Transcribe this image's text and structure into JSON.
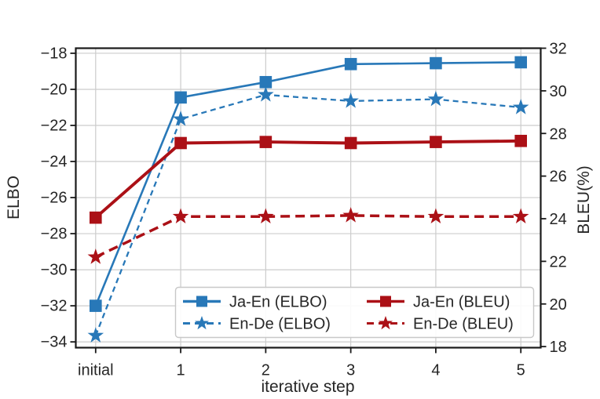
{
  "figure": {
    "background": "#ffffff"
  },
  "colors": {
    "blue": "#2878b8",
    "red": "#ab1016",
    "grid": "#cccccc",
    "spine": "#1a1a1a",
    "text": "#262626",
    "legend_border": "#c8c8c8",
    "legend_bg": "#ffffff"
  },
  "chart_data": {
    "type": "line",
    "categories": [
      "initial",
      "1",
      "2",
      "3",
      "4",
      "5"
    ],
    "x_axis_label": "iterative step",
    "left_axis": {
      "label": "ELBO",
      "ticks": [
        -18,
        -20,
        -22,
        -24,
        -26,
        -28,
        -30,
        -32,
        -34
      ],
      "tick_labels": [
        "−18",
        "−20",
        "−22",
        "−24",
        "−26",
        "−28",
        "−30",
        "−32",
        "−34"
      ],
      "lim": [
        -34.32,
        -17.72
      ]
    },
    "right_axis": {
      "label": "BLEU(%)",
      "ticks": [
        32,
        30,
        28,
        26,
        24,
        22,
        20,
        18
      ],
      "tick_labels": [
        "32",
        "30",
        "28",
        "26",
        "24",
        "22",
        "20",
        "18"
      ],
      "lim": [
        17.95,
        32.0
      ]
    },
    "grid": true,
    "legend_position": "lower center-right, 2 columns",
    "series": [
      {
        "name": "Ja-En (ELBO)",
        "axis": "left",
        "color": "#2878b8",
        "style": "solid",
        "marker": "square",
        "values": [
          -32.0,
          -20.45,
          -19.6,
          -18.6,
          -18.55,
          -18.5
        ]
      },
      {
        "name": "En-De (ELBO)",
        "axis": "left",
        "color": "#2878b8",
        "style": "dashed",
        "marker": "star",
        "values": [
          -33.65,
          -21.65,
          -20.3,
          -20.65,
          -20.55,
          -21.0
        ]
      },
      {
        "name": "Ja-En (BLEU)",
        "axis": "right",
        "color": "#ab1016",
        "style": "solid",
        "marker": "square",
        "values": [
          24.05,
          27.55,
          27.6,
          27.55,
          27.6,
          27.65
        ]
      },
      {
        "name": "En-De (BLEU)",
        "axis": "right",
        "color": "#ab1016",
        "style": "dashed",
        "marker": "star",
        "values": [
          22.2,
          24.1,
          24.1,
          24.15,
          24.1,
          24.1
        ]
      }
    ],
    "legend_labels": [
      "Ja-En (ELBO)",
      "En-De (ELBO)",
      "Ja-En (BLEU)",
      "En-De (BLEU)"
    ]
  }
}
